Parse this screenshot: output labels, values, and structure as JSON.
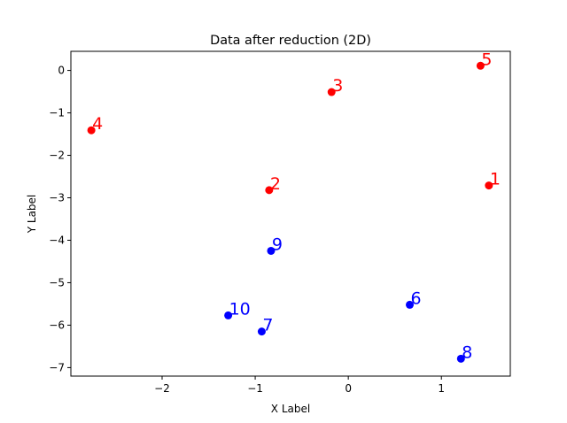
{
  "chart_data": {
    "type": "scatter",
    "title": "Data after reduction (2D)",
    "xlabel": "X Label",
    "ylabel": "Y Label",
    "xlim": [
      -2.98,
      1.74
    ],
    "ylim": [
      -7.2,
      0.45
    ],
    "xticks": [
      -2,
      -1,
      0,
      1
    ],
    "xtick_labels": [
      "−2",
      "−1",
      "0",
      "1"
    ],
    "yticks": [
      0,
      -1,
      -2,
      -3,
      -4,
      -5,
      -6,
      -7
    ],
    "ytick_labels": [
      "0",
      "−1",
      "−2",
      "−3",
      "−4",
      "−5",
      "−6",
      "−7"
    ],
    "grid": false,
    "series": [
      {
        "color": "#ff0000",
        "points": [
          {
            "label": "1",
            "x": 1.51,
            "y": -2.71
          },
          {
            "label": "2",
            "x": -0.85,
            "y": -2.82
          },
          {
            "label": "3",
            "x": -0.18,
            "y": -0.51
          },
          {
            "label": "4",
            "x": -2.76,
            "y": -1.41
          },
          {
            "label": "5",
            "x": 1.42,
            "y": 0.11
          }
        ]
      },
      {
        "color": "#0000ff",
        "points": [
          {
            "label": "6",
            "x": 0.66,
            "y": -5.52
          },
          {
            "label": "7",
            "x": -0.93,
            "y": -6.15
          },
          {
            "label": "8",
            "x": 1.21,
            "y": -6.79
          },
          {
            "label": "9",
            "x": -0.83,
            "y": -4.25
          },
          {
            "label": "10",
            "x": -1.29,
            "y": -5.77
          }
        ]
      }
    ]
  }
}
